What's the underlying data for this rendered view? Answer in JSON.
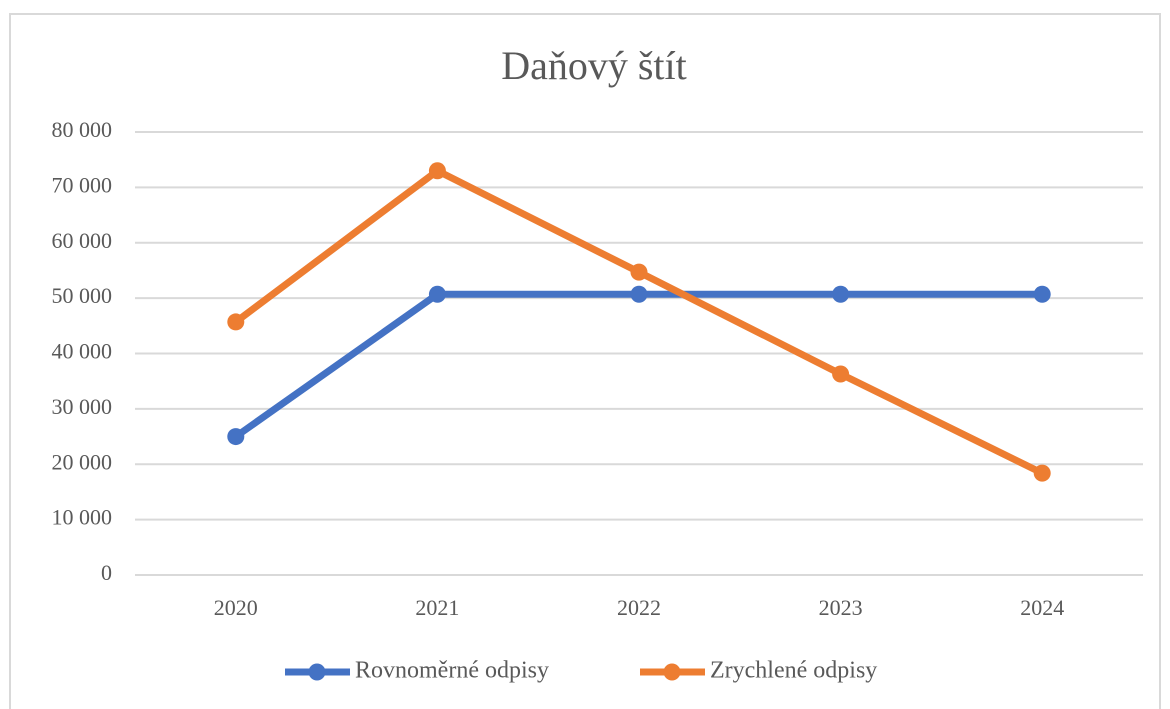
{
  "chart_data": {
    "type": "line",
    "title": "Daňový  štít",
    "categories": [
      "2020",
      "2021",
      "2022",
      "2023",
      "2024"
    ],
    "series": [
      {
        "name": "Rovnoměrné odpisy",
        "color": "#4472c4",
        "values": [
          25000,
          50700,
          50700,
          50700,
          50700
        ]
      },
      {
        "name": "Zrychlené odpisy",
        "color": "#ed7d31",
        "values": [
          45700,
          73000,
          54700,
          36300,
          18400
        ]
      }
    ],
    "ylim": [
      0,
      80000
    ],
    "yticks": [
      {
        "value": 0,
        "label": "0"
      },
      {
        "value": 10000,
        "label": "10 000"
      },
      {
        "value": 20000,
        "label": "20 000"
      },
      {
        "value": 30000,
        "label": "30 000"
      },
      {
        "value": 40000,
        "label": "40 000"
      },
      {
        "value": 50000,
        "label": "50 000"
      },
      {
        "value": 60000,
        "label": "60 000"
      },
      {
        "value": 70000,
        "label": "70 000"
      },
      {
        "value": 80000,
        "label": "80 000"
      }
    ],
    "grid": true,
    "legend": "bottom"
  }
}
